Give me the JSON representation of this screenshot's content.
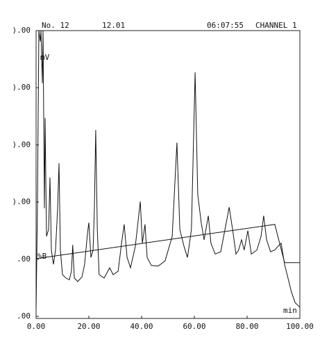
{
  "chart_data": {
    "type": "line",
    "header": [
      "No. 12",
      "12.01",
      "06:07:55",
      "CHANNEL 1"
    ],
    "y_label": "mV",
    "x_label": "min",
    "y2_label": "%B",
    "xlim": [
      0,
      100
    ],
    "xticks": [
      {
        "value": 0,
        "label": "0.00"
      },
      {
        "value": 20,
        "label": "20.00"
      },
      {
        "value": 40,
        "label": "40.00"
      },
      {
        "value": 60,
        "label": "60.00"
      },
      {
        "value": 80,
        "label": "80.00"
      },
      {
        "value": 100,
        "label": "100.00"
      }
    ],
    "ylim": [
      0,
      5
    ],
    "yticks": [
      {
        "value": 5,
        "label": ").00"
      },
      {
        "value": 4,
        "label": ").00"
      },
      {
        "value": 3,
        "label": ").00"
      },
      {
        "value": 2,
        "label": ").00"
      },
      {
        "value": 1,
        "label": ".00"
      },
      {
        "value": 0,
        "label": ".00"
      }
    ],
    "series": [
      {
        "color": "#111111",
        "x": [
          0,
          0.5,
          1.05,
          1.58,
          1.84,
          2.37,
          2.63,
          3.16,
          3.42,
          3.95,
          4.74,
          5.26,
          5.79,
          6.58,
          7.37,
          8.16,
          8.68,
          9.21,
          10,
          11.3,
          12.6,
          13.4,
          13.9,
          14.5,
          15.8,
          17.4,
          18.4,
          19.5,
          20,
          20.8,
          21.6,
          22.1,
          22.6,
          23.2,
          23.9,
          25.8,
          27.9,
          29.2,
          31.1,
          32.4,
          33.4,
          34.5,
          35.8,
          37.6,
          39.5,
          40.3,
          41.3,
          42.1,
          43.7,
          46.3,
          48.9,
          51.6,
          53.4,
          54.5,
          56.1,
          57.4,
          58.9,
          60.3,
          61.3,
          62.6,
          63.7,
          65.3,
          66.3,
          67.9,
          70,
          71.6,
          73.2,
          74.5,
          75.8,
          76.8,
          77.9,
          78.9,
          80.3,
          81.6,
          83.7,
          85.3,
          86.3,
          87.4,
          88.9,
          90.5,
          91.6,
          92.9,
          94.2,
          95.5,
          96.8,
          98.2,
          100
        ],
        "values": [
          0.12,
          1.89,
          5,
          4.81,
          5,
          4.08,
          5,
          1.89,
          3.47,
          1.4,
          1.52,
          2.43,
          1.16,
          0.91,
          1.16,
          1.89,
          2.68,
          1.16,
          0.73,
          0.67,
          0.64,
          0.79,
          1.25,
          0.67,
          0.61,
          0.69,
          0.91,
          1.46,
          1.64,
          1.03,
          1.16,
          1.89,
          3.26,
          1.52,
          0.73,
          0.67,
          0.85,
          0.73,
          0.79,
          1.28,
          1.61,
          1.03,
          0.85,
          1.22,
          2.01,
          1.28,
          1.61,
          1.03,
          0.89,
          0.88,
          0.97,
          1.4,
          3.04,
          1.52,
          1.22,
          1.03,
          1.52,
          4.27,
          2.13,
          1.64,
          1.34,
          1.76,
          1.28,
          1.09,
          1.13,
          1.52,
          1.91,
          1.52,
          1.09,
          1.16,
          1.34,
          1.16,
          1.5,
          1.09,
          1.16,
          1.4,
          1.76,
          1.34,
          1.13,
          1.16,
          1.22,
          1.28,
          0.91,
          0.67,
          0.43,
          0.24,
          0.16
        ]
      },
      {
        "color": "#111111",
        "x": [
          0,
          90.5,
          94.2,
          100
        ],
        "values": [
          1.01,
          1.61,
          0.94,
          0.94
        ]
      }
    ]
  }
}
